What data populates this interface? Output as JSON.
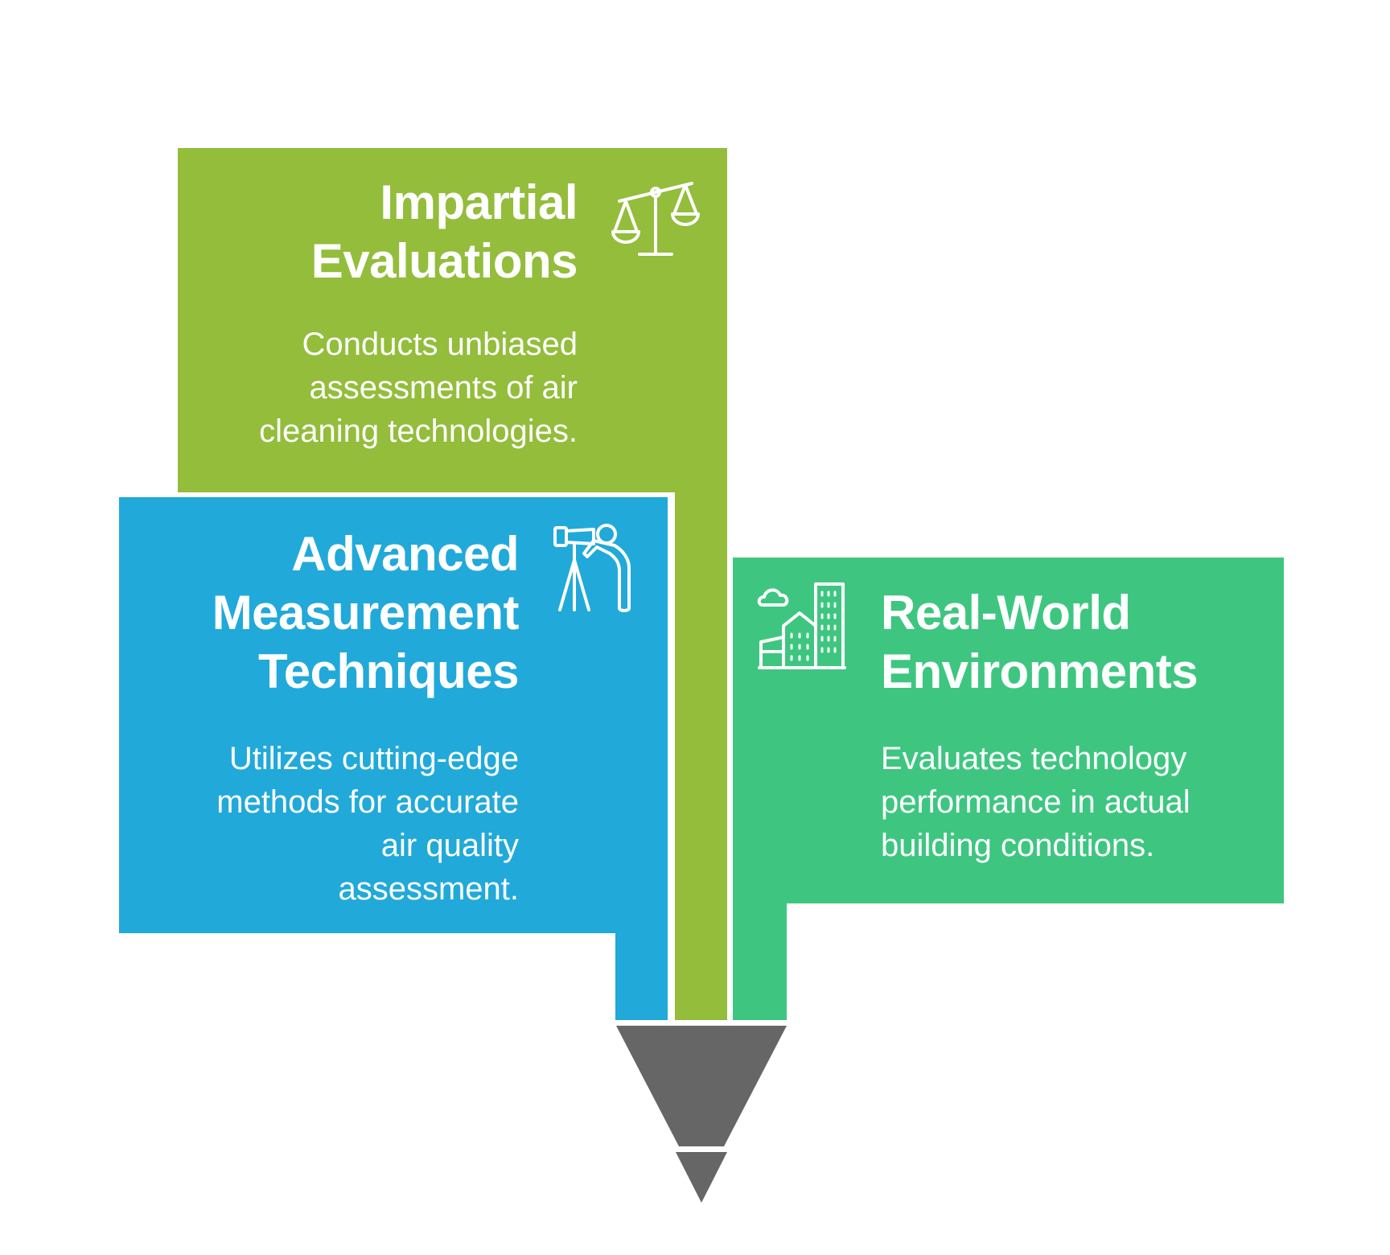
{
  "colors": {
    "green_block": "#93bd3b",
    "blue_block": "#21a9da",
    "teal_block": "#3ec681",
    "funnel": "#666666",
    "text": "#ffffff"
  },
  "blocks": [
    {
      "id": "impartial",
      "title": "Impartial Evaluations",
      "title_lines": [
        "Impartial",
        "Evaluations"
      ],
      "description_lines": [
        "Conducts unbiased",
        "assessments of air",
        "cleaning technologies."
      ],
      "icon": "balance-scale-icon"
    },
    {
      "id": "advanced",
      "title": "Advanced Measurement Techniques",
      "title_lines": [
        "Advanced",
        "Measurement",
        "Techniques"
      ],
      "description_lines": [
        "Utilizes cutting-edge",
        "methods for accurate",
        "air quality",
        "assessment."
      ],
      "icon": "telescope-observer-icon"
    },
    {
      "id": "real_world",
      "title": "Real-World Environments",
      "title_lines": [
        "Real-World",
        "Environments"
      ],
      "description_lines": [
        "Evaluates technology",
        "performance in actual",
        "building conditions."
      ],
      "icon": "city-buildings-icon"
    }
  ]
}
